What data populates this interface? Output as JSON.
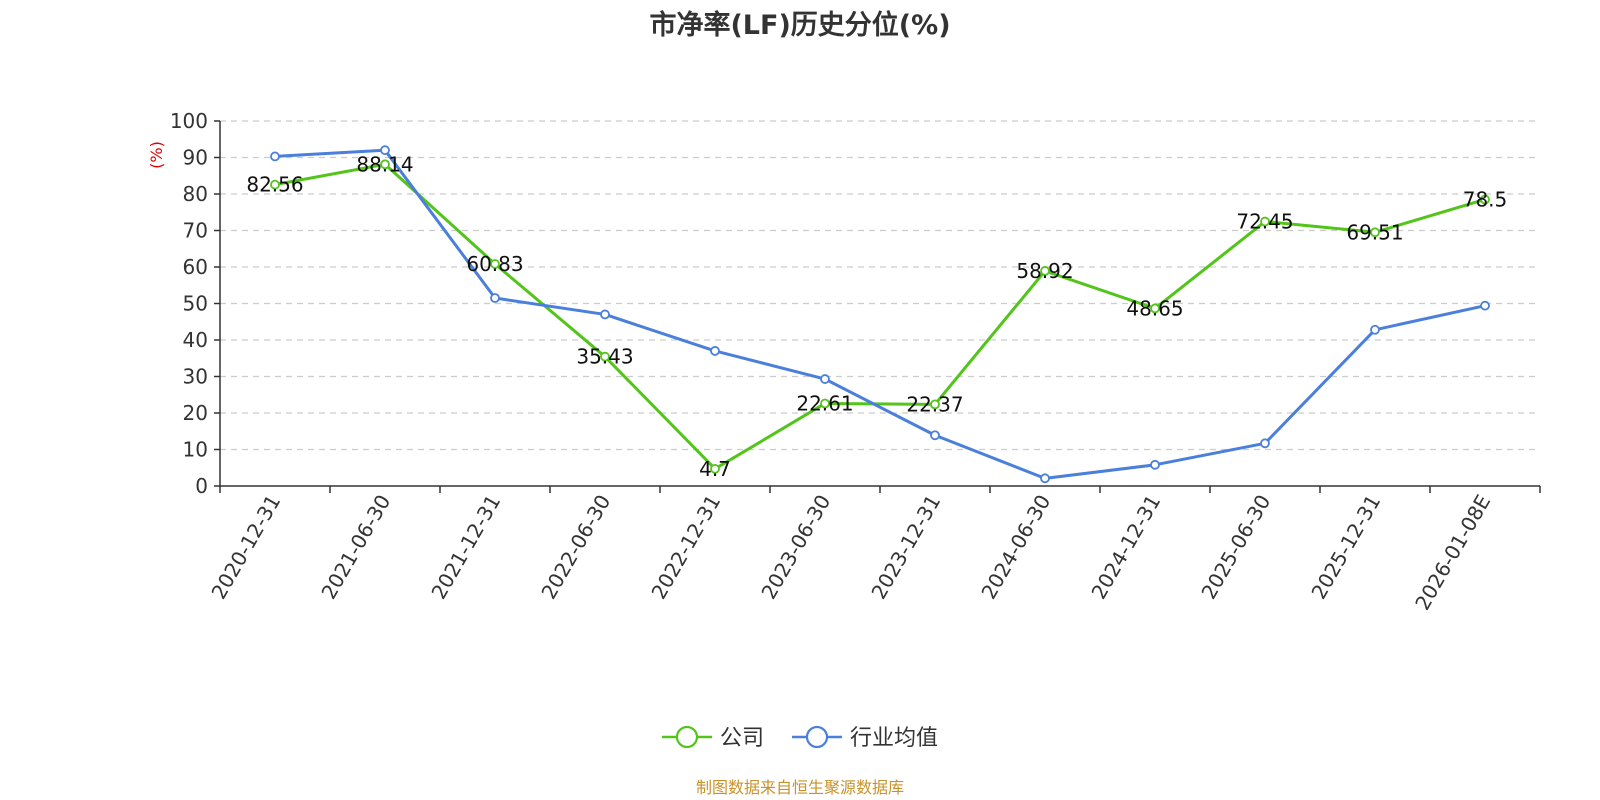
{
  "chart_data": {
    "type": "line",
    "title": "市净率(LF)历史分位(%)",
    "ylabel": "(%)",
    "ylim": [
      0,
      100
    ],
    "yticks": [
      0,
      10,
      20,
      30,
      40,
      50,
      60,
      70,
      80,
      90,
      100
    ],
    "grid": true,
    "legend_position": "bottom-center",
    "categories": [
      "2020-12-31",
      "2021-06-30",
      "2021-12-31",
      "2022-06-30",
      "2022-12-31",
      "2023-06-30",
      "2023-12-31",
      "2024-06-30",
      "2024-12-31",
      "2025-06-30",
      "2025-12-31",
      "2026-01-08E"
    ],
    "series": [
      {
        "name": "公司",
        "color": "#52c41a",
        "values": [
          82.56,
          88.14,
          60.83,
          35.43,
          4.7,
          22.61,
          22.37,
          58.92,
          48.65,
          72.45,
          69.51,
          78.5
        ],
        "labels": [
          "82.56",
          "88.14",
          "60.83",
          "35.43",
          "4.7",
          "22.61",
          "22.37",
          "58.92",
          "48.65",
          "72.45",
          "69.51",
          "78.5"
        ]
      },
      {
        "name": "行业均值",
        "color": "#4a7fdc",
        "values": [
          90.3,
          92.0,
          51.5,
          47.0,
          37.0,
          29.3,
          13.9,
          2.1,
          5.8,
          11.7,
          42.8,
          49.4
        ]
      }
    ]
  },
  "ylabel_color": "#e00000",
  "source": {
    "text": "制图数据来自恒生聚源数据库",
    "color": "#c8922a"
  }
}
